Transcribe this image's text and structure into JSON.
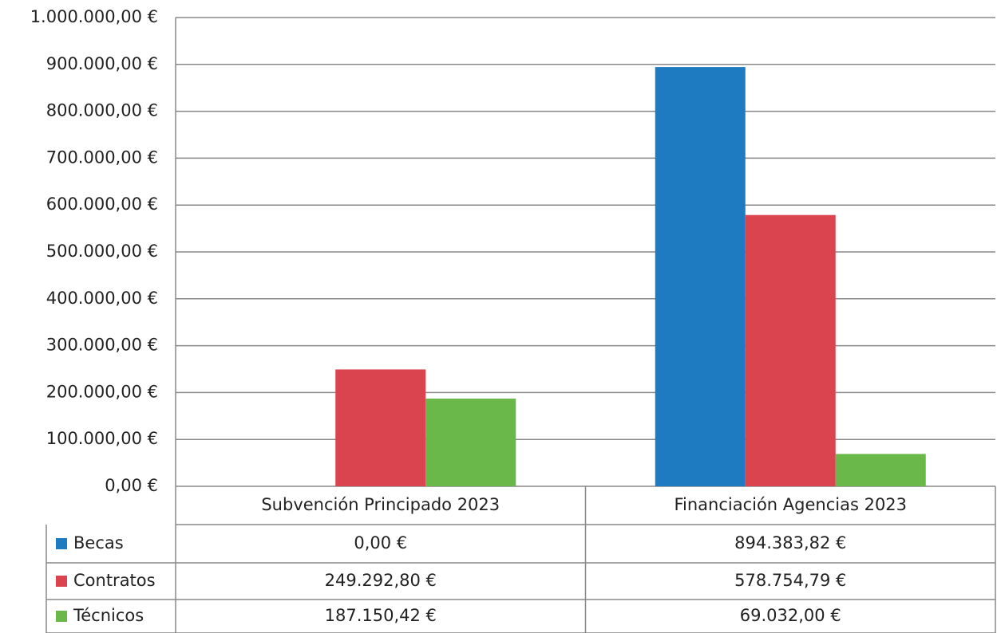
{
  "chart_data": {
    "type": "bar",
    "categories": [
      "Subvención Principado 2023",
      "Financiación Agencias 2023"
    ],
    "series": [
      {
        "name": "Becas",
        "color": "#1f7bc1",
        "values": [
          0,
          894383.82
        ],
        "value_labels": [
          "0,00 €",
          "894.383,82 €"
        ]
      },
      {
        "name": "Contratos",
        "color": "#d9444f",
        "values": [
          249292.8,
          578754.79
        ],
        "value_labels": [
          "249.292,80 €",
          "578.754,79 €"
        ]
      },
      {
        "name": "Técnicos",
        "color": "#6ab84a",
        "values": [
          187150.42,
          69032
        ],
        "value_labels": [
          "187.150,42 €",
          "69.032,00 €"
        ]
      }
    ],
    "ylim": [
      0,
      1000000
    ],
    "yticks": [
      {
        "value": 0,
        "label": "0,00 €"
      },
      {
        "value": 100000,
        "label": "100.000,00 €"
      },
      {
        "value": 200000,
        "label": "200.000,00 €"
      },
      {
        "value": 300000,
        "label": "300.000,00 €"
      },
      {
        "value": 400000,
        "label": "400.000,00 €"
      },
      {
        "value": 500000,
        "label": "500.000,00 €"
      },
      {
        "value": 600000,
        "label": "600.000,00 €"
      },
      {
        "value": 700000,
        "label": "700.000,00 €"
      },
      {
        "value": 800000,
        "label": "800.000,00 €"
      },
      {
        "value": 900000,
        "label": "900.000,00 €"
      },
      {
        "value": 1000000,
        "label": "1.000.000,00 €"
      }
    ],
    "grid": true
  }
}
